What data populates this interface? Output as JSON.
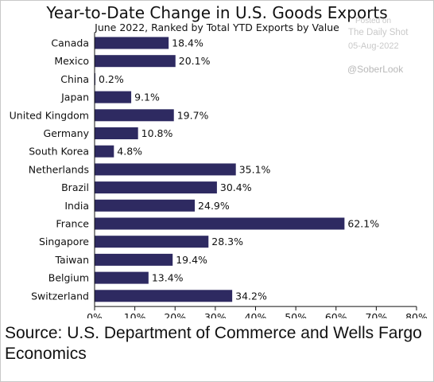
{
  "title": "Year-to-Date Change in U.S. Goods Exports",
  "subtitle": "June 2022, Ranked by Total YTD Exports by Value",
  "watermark": {
    "posted": "Posted on",
    "site": "The Daily Shot",
    "date": "05-Aug-2022",
    "handle": "@SoberLook"
  },
  "source": "Source: U.S. Department of Commerce and Wells Fargo Economics",
  "colors": {
    "bar": "#2e2a61",
    "axis": "#111111"
  },
  "chart_data": {
    "type": "bar",
    "orientation": "horizontal",
    "categories": [
      "Canada",
      "Mexico",
      "China",
      "Japan",
      "United Kingdom",
      "Germany",
      "South Korea",
      "Netherlands",
      "Brazil",
      "India",
      "France",
      "Singapore",
      "Taiwan",
      "Belgium",
      "Switzerland"
    ],
    "values": [
      18.4,
      20.1,
      0.2,
      9.1,
      19.7,
      10.8,
      4.8,
      35.1,
      30.4,
      24.9,
      62.1,
      28.3,
      19.4,
      13.4,
      34.2
    ],
    "data_labels": [
      "18.4%",
      "20.1%",
      "0.2%",
      "9.1%",
      "19.7%",
      "10.8%",
      "4.8%",
      "35.1%",
      "30.4%",
      "24.9%",
      "62.1%",
      "28.3%",
      "19.4%",
      "13.4%",
      "34.2%"
    ],
    "xlim": [
      0,
      80
    ],
    "xticks": [
      0,
      10,
      20,
      30,
      40,
      50,
      60,
      70,
      80
    ],
    "xtick_labels": [
      "0%",
      "10%",
      "20%",
      "30%",
      "40%",
      "50%",
      "60%",
      "70%",
      "80%"
    ],
    "grid": false,
    "title": "Year-to-Date Change in U.S. Goods Exports",
    "subtitle": "June 2022, Ranked by Total YTD Exports by Value"
  }
}
